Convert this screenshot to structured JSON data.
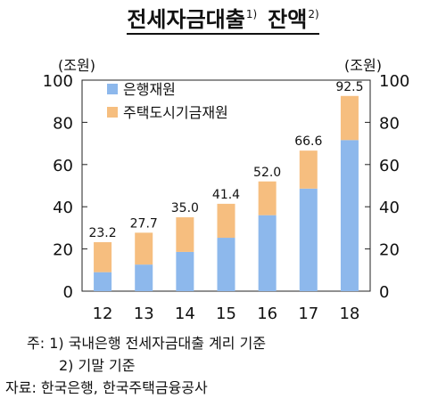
{
  "title": {
    "part1": "전세자금대출",
    "part1_sup": "1)",
    "part2": "잔액",
    "part2_sup": "2)"
  },
  "chart_data": {
    "type": "bar",
    "stacked": true,
    "categories": [
      "12",
      "13",
      "14",
      "15",
      "16",
      "17",
      "18"
    ],
    "series": [
      {
        "name": "은행재원",
        "values": [
          9.0,
          12.6,
          18.6,
          25.3,
          36.0,
          48.6,
          71.6
        ],
        "color": "#8db8ec"
      },
      {
        "name": "주택도시기금재원",
        "values": [
          14.2,
          15.1,
          16.4,
          16.1,
          16.0,
          18.0,
          20.9
        ],
        "color": "#f6be7f"
      }
    ],
    "totals": [
      "23.2",
      "27.7",
      "35.0",
      "41.4",
      "52.0",
      "66.6",
      "92.5"
    ],
    "ylim": [
      0,
      100
    ],
    "yticks": [
      "0",
      "20",
      "40",
      "60",
      "80",
      "100"
    ],
    "left_unit": "(조원)",
    "right_unit": "(조원)",
    "legend_position": "top-left"
  },
  "notes": {
    "line1": "주: 1) 국내은행 전세자금대출 계리 기준",
    "line2": "2) 기말 기준",
    "source": "자료: 한국은행, 한국주택금융공사"
  }
}
